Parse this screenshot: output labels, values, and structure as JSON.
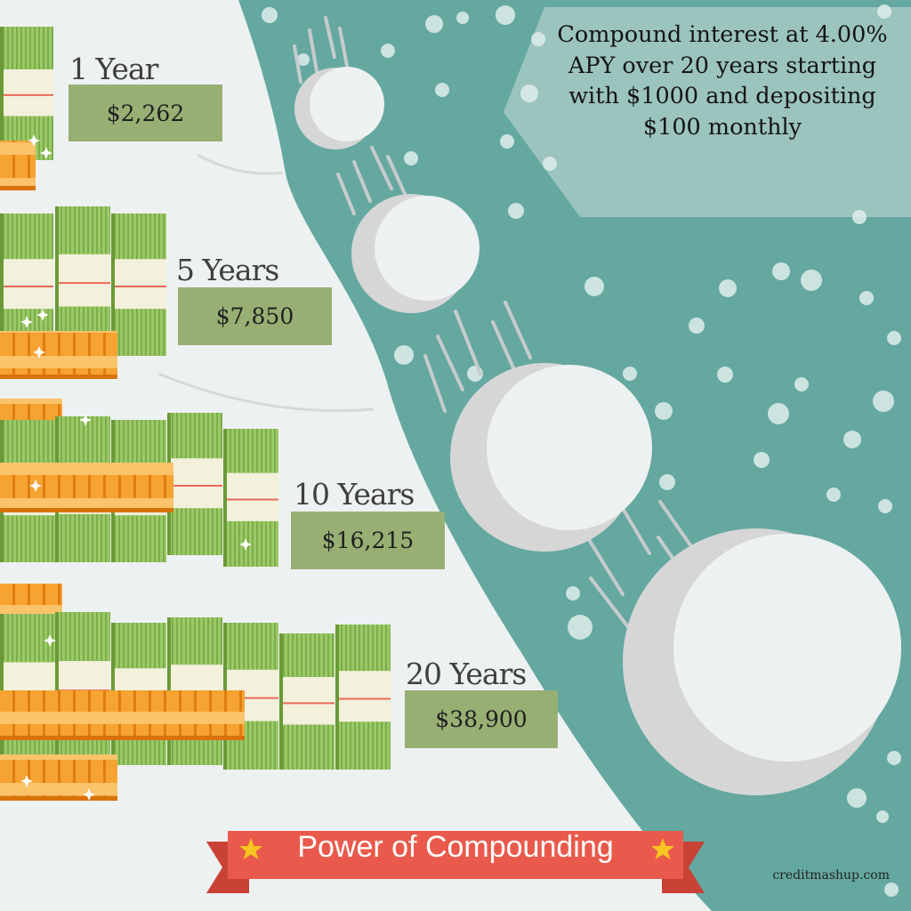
{
  "headline": "Compound interest at 4.00% APY over 20 years starting with $1000 and depositing $100 monthly",
  "milestones": [
    {
      "label": "1 Year",
      "amount": "$2,262"
    },
    {
      "label": "5 Years",
      "amount": "$7,850"
    },
    {
      "label": "10 Years",
      "amount": "$16,215"
    },
    {
      "label": "20 Years",
      "amount": "$38,900"
    }
  ],
  "banner": {
    "title": "Power of Compounding"
  },
  "footer": {
    "site": "creditmashup.com"
  },
  "icons": [
    "money-stack-icon",
    "coin-stack-icon",
    "snowball-icon",
    "star-icon",
    "sparkle-icon"
  ],
  "colors": {
    "teal": "#64a8a0",
    "label_green": "#98af74",
    "bill_green": "#8fbf5d",
    "coin_orange": "#f59a22",
    "ribbon_red": "#ea5a4c",
    "star_yellow": "#f7c520"
  }
}
